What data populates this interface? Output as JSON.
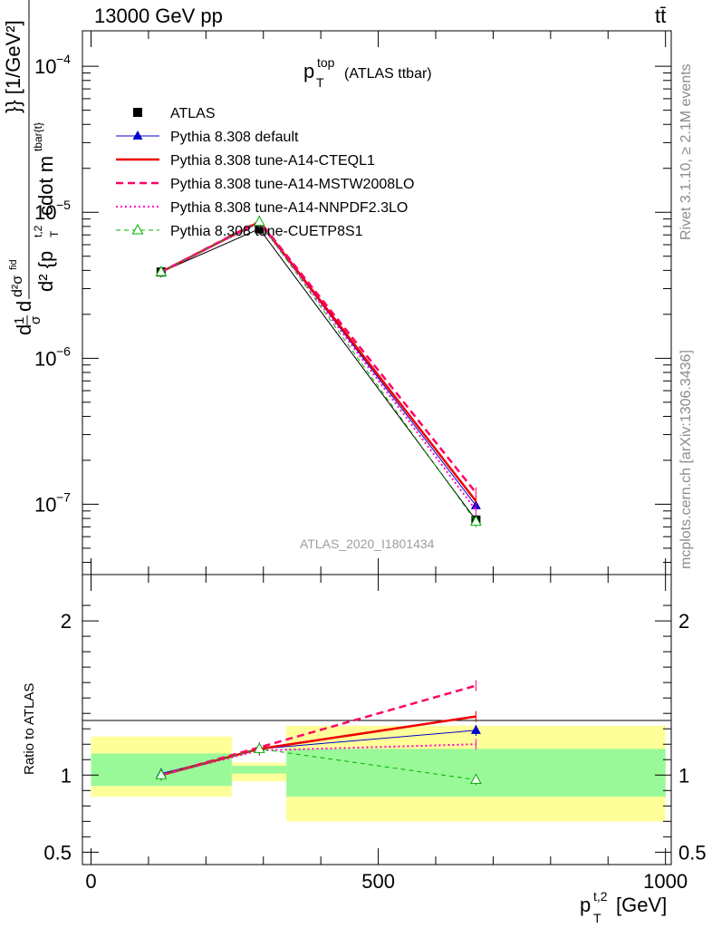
{
  "header": {
    "left": "13000 GeV pp",
    "right": "tt̄"
  },
  "side_labels": {
    "rivet": "Rivet 3.1.10, ≥ 2.1M events",
    "mcplots": "mcplots.cern.ch [arXiv:1306.3436]"
  },
  "chart_data": [
    {
      "type": "line",
      "panel": "main",
      "title_main": "p",
      "title_sup": "top",
      "title_sub": "T",
      "title_rest": "(ATLAS ttbar)",
      "watermark": "ATLAS_2020_I1801434",
      "ylabel": "d²σ/d²{p_T^{t,2} cdot m^{tbar{t}}} [1/GeV²]",
      "yscale": "log",
      "ylim": [
        3.3e-08,
        0.000175
      ],
      "xlim": [
        -15,
        1010
      ],
      "y_ticks": [
        {
          "value": 0.0001,
          "base": "10",
          "exp": "−4"
        },
        {
          "value": 1e-05,
          "base": "10",
          "exp": "−5"
        },
        {
          "value": 1e-06,
          "base": "10",
          "exp": "−6"
        },
        {
          "value": 1e-07,
          "base": "10",
          "exp": "−7"
        }
      ],
      "legend_position": "top-left",
      "x": [
        122,
        293,
        670
      ],
      "series": [
        {
          "name": "ATLAS",
          "values": [
            3.9e-06,
            7.7e-06,
            7.8e-08
          ],
          "color": "#000000",
          "dash": "",
          "marker": "square",
          "width": 1
        },
        {
          "name": "Pythia 8.308 default",
          "values": [
            3.9e-06,
            8.5e-06,
            9.8e-08
          ],
          "color": "#0000cc",
          "dash": "",
          "marker": "triangle",
          "width": 1
        },
        {
          "name": "Pythia 8.308 tune-A14-CTEQL1",
          "values": [
            3.9e-06,
            8.6e-06,
            1.05e-07
          ],
          "color": "#ee0000",
          "dash": "",
          "marker": "none",
          "width": 2.5
        },
        {
          "name": "Pythia 8.308 tune-A14-MSTW2008LO",
          "values": [
            3.9e-06,
            8.7e-06,
            1.2e-07
          ],
          "color": "#ff0066",
          "dash": "8,5",
          "marker": "none",
          "width": 2.5
        },
        {
          "name": "Pythia 8.308 tune-A14-NNPDF2.3LO",
          "values": [
            3.9e-06,
            8.5e-06,
            9.1e-08
          ],
          "color": "#ff00cc",
          "dash": "2,3",
          "marker": "none",
          "width": 2
        },
        {
          "name": "Pythia 8.308 tune-CUETP8S1",
          "values": [
            3.9e-06,
            8.6e-06,
            7.6e-08
          ],
          "color": "#00b000",
          "dash": "5,4",
          "marker": "open-triangle",
          "width": 1
        }
      ]
    },
    {
      "type": "line",
      "panel": "ratio",
      "ylabel": "Ratio to ATLAS",
      "ylim": [
        0.42,
        2.3
      ],
      "xlim": [
        -15,
        1010
      ],
      "y_ticks": [
        {
          "value": 0.5,
          "label": "0.5"
        },
        {
          "value": 1,
          "label": "1"
        },
        {
          "value": 2,
          "label": "2"
        }
      ],
      "x_ticks": [
        {
          "value": 0,
          "label": "0"
        },
        {
          "value": 500,
          "label": "500"
        },
        {
          "value": 1000,
          "label": "1000"
        }
      ],
      "xlabel_main": "p",
      "xlabel_sup": "t,2",
      "xlabel_sub": "T",
      "xlabel_unit": "[GeV]",
      "bands": [
        {
          "x0": 0,
          "x1": 245,
          "yellow": [
            0.86,
            1.25
          ],
          "green": [
            0.93,
            1.14
          ]
        },
        {
          "x0": 245,
          "x1": 340,
          "yellow": [
            0.96,
            1.08
          ],
          "green": [
            1.01,
            1.06
          ]
        },
        {
          "x0": 340,
          "x1": 1000,
          "yellow": [
            0.7,
            1.32
          ],
          "green": [
            0.86,
            1.17
          ]
        }
      ],
      "x": [
        122,
        293,
        670
      ],
      "series": [
        {
          "name": "Pythia 8.308 default",
          "values": [
            1.01,
            1.17,
            1.29
          ],
          "color": "#0000cc",
          "dash": "",
          "marker": "triangle",
          "width": 1
        },
        {
          "name": "Pythia 8.308 tune-A14-CTEQL1",
          "values": [
            1.0,
            1.17,
            1.38
          ],
          "color": "#ee0000",
          "dash": "",
          "marker": "none",
          "width": 2.5
        },
        {
          "name": "Pythia 8.308 tune-A14-MSTW2008LO",
          "values": [
            1.0,
            1.18,
            1.58
          ],
          "color": "#ff0066",
          "dash": "8,5",
          "marker": "none",
          "width": 2.5
        },
        {
          "name": "Pythia 8.308 tune-A14-NNPDF2.3LO",
          "values": [
            1.0,
            1.16,
            1.2
          ],
          "color": "#ff00cc",
          "dash": "2,3",
          "marker": "none",
          "width": 2
        },
        {
          "name": "Pythia 8.308 tune-CUETP8S1",
          "values": [
            1.0,
            1.17,
            0.97
          ],
          "color": "#00b000",
          "dash": "5,4",
          "marker": "open-triangle",
          "width": 1
        }
      ]
    }
  ]
}
